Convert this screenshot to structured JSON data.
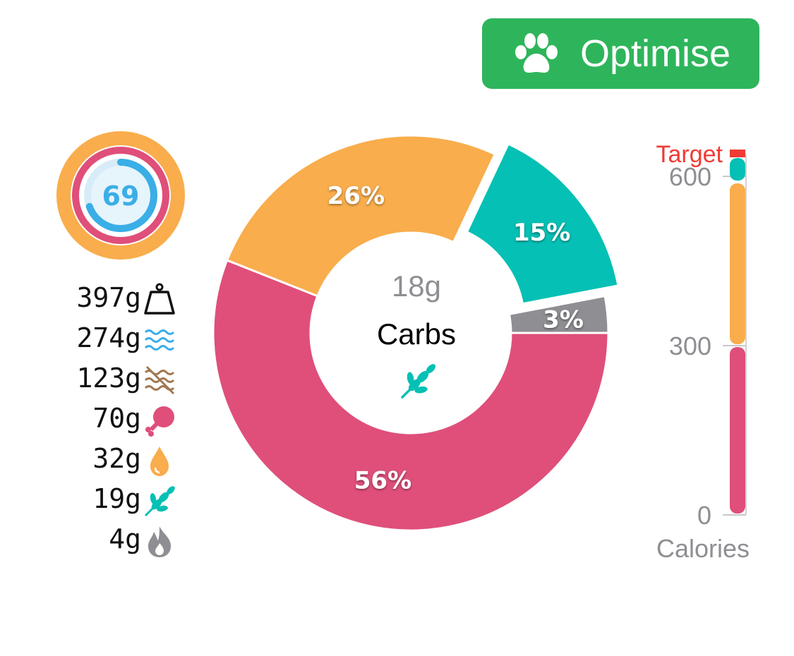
{
  "optimise_button": {
    "label": "Optimise",
    "icon": "paw-icon",
    "color": "#2eb55b"
  },
  "score": {
    "value": "69",
    "colors": {
      "outer": "#f9ad4c",
      "middle": "#df4f7a",
      "inner": "#3aaee6"
    }
  },
  "nutrients": [
    {
      "value": "397g",
      "icon": "weight-icon"
    },
    {
      "value": "274g",
      "icon": "water-waves-icon"
    },
    {
      "value": "123g",
      "icon": "fiber-icon"
    },
    {
      "value": "70g",
      "icon": "drumstick-icon"
    },
    {
      "value": "32g",
      "icon": "drop-icon"
    },
    {
      "value": "19g",
      "icon": "wheat-icon"
    },
    {
      "value": "4g",
      "icon": "flame-icon"
    }
  ],
  "center": {
    "value": "18g",
    "label": "Carbs",
    "icon": "wheat-icon"
  },
  "chart_data": [
    {
      "type": "pie",
      "variant": "donut",
      "slices": [
        {
          "label": "56%",
          "value": 56,
          "color": "#df4f7a"
        },
        {
          "label": "26%",
          "value": 26,
          "color": "#f9ad4c"
        },
        {
          "label": "15%",
          "value": 15,
          "color": "#05c0b4",
          "highlighted": true
        },
        {
          "label": "3%",
          "value": 3,
          "color": "#8e8e93"
        }
      ]
    },
    {
      "type": "bar",
      "stacked": true,
      "ylabel": "Calories",
      "yticks": [
        "0",
        "300",
        "600"
      ],
      "ylim": [
        0,
        650
      ],
      "target_label": "Target",
      "target_value": 640,
      "target_color": "#ef3b33",
      "segments": [
        {
          "value": 300,
          "color": "#df4f7a"
        },
        {
          "value": 290,
          "color": "#f9ad4c"
        },
        {
          "value": 45,
          "color": "#05c0b4"
        }
      ]
    }
  ]
}
